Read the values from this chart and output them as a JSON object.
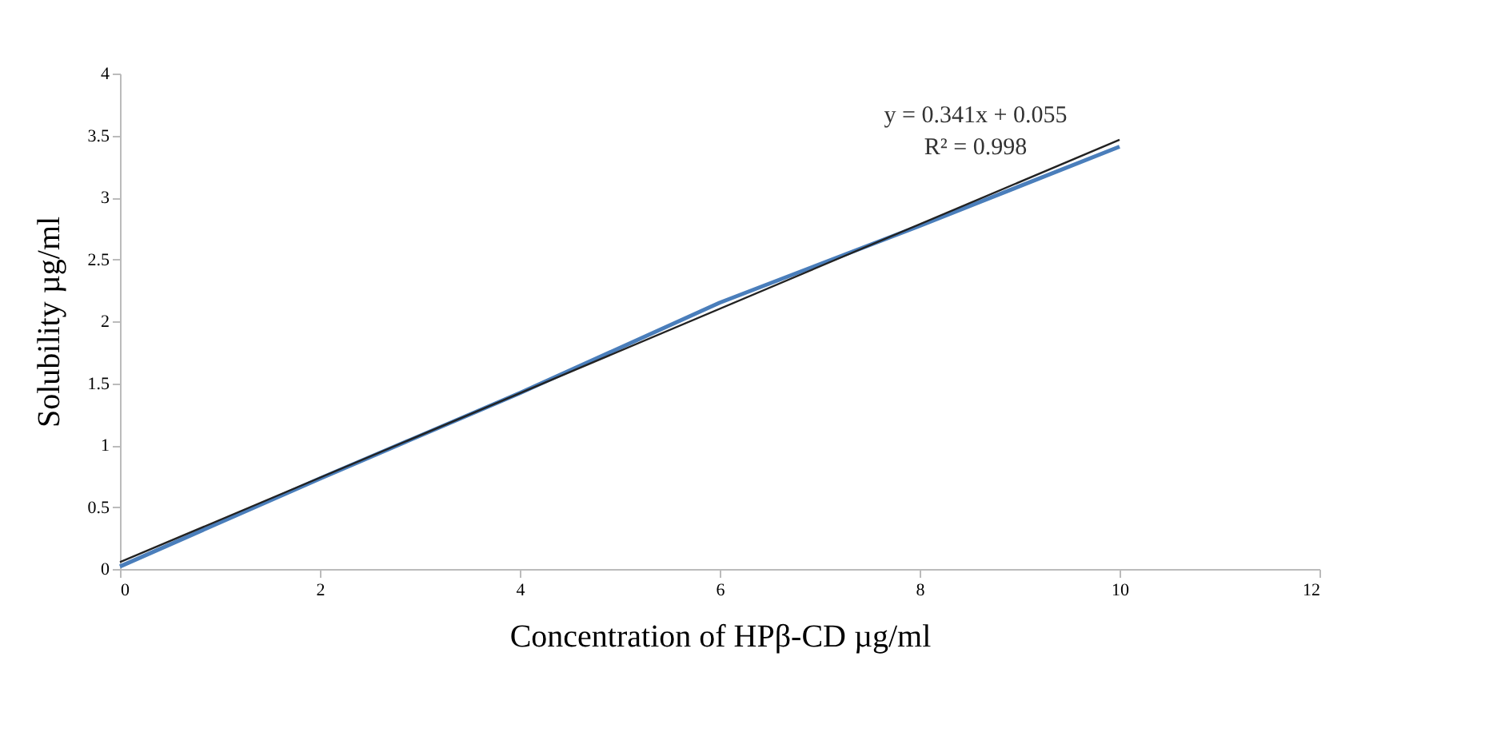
{
  "chart_data": {
    "type": "line",
    "xlabel": "Concentration of HPβ-CD µg/ml",
    "ylabel": "Solubility µg/ml",
    "xlim": [
      0,
      12
    ],
    "xticks": [
      0,
      2,
      4,
      6,
      8,
      10,
      12
    ],
    "ylim": [
      0,
      4
    ],
    "yticks": [
      0,
      0.5,
      1,
      1.5,
      2,
      2.5,
      3,
      3.5,
      4
    ],
    "grid": false,
    "marker": "none",
    "line_style": "solid",
    "series": [
      {
        "color": "#4a7ebb",
        "x": [
          0,
          2,
          4,
          6,
          8,
          10
        ],
        "values": [
          0.02,
          0.73,
          1.42,
          2.15,
          2.77,
          3.41
        ]
      },
      {
        "type": "line",
        "color": "#222222",
        "x": [
          0,
          10
        ],
        "values": [
          0.055,
          3.465
        ]
      }
    ],
    "annotations": [
      "y = 0.341x + 0.055",
      "R² = 0.998"
    ]
  }
}
